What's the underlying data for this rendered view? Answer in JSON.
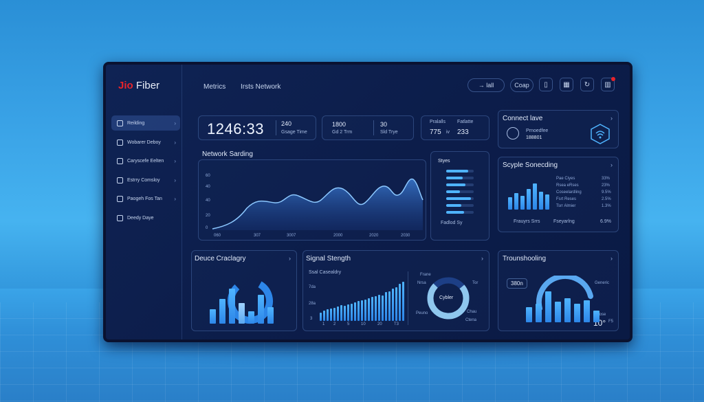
{
  "brand": {
    "jio": "Jio",
    "fiber": "Fiber"
  },
  "topnav": [
    "Metrics",
    "Irsts Network"
  ],
  "toolbar": {
    "left_btn": "→ lall",
    "right_btn": "Coap",
    "icons": [
      "panel-icon",
      "grid-icon",
      "refresh-icon",
      "notification-icon"
    ]
  },
  "sidebar": {
    "items": [
      {
        "label": "Reilding"
      },
      {
        "label": "Wobarer Deboy"
      },
      {
        "label": "Caryscefe Eelten"
      },
      {
        "label": "Estrry Comsloy"
      },
      {
        "label": "Paogeh Fos Tan"
      },
      {
        "label": "Deedy Daye"
      }
    ]
  },
  "stats": {
    "clock": "1246:33",
    "s1_value": "240",
    "s1_label": "Gsage Time",
    "s2_value": "1800",
    "s2_label": "Gd 2 Trm",
    "s3_value": "30",
    "s3_label": "Sld Trye",
    "s4_label_a": "Pralalls",
    "s4_label_b": "Fatlatte",
    "s4_value_a": "775",
    "s4_unit": "iv",
    "s4_value_b": "233"
  },
  "connect": {
    "title": "Connect lave",
    "line1": "Prnoedfee",
    "line2": "188801"
  },
  "network": {
    "title": "Network Sarding",
    "y_ticks": [
      "60",
      "40",
      "40",
      "20",
      "0"
    ],
    "x_ticks": [
      "060",
      "307",
      "3007",
      "2000",
      "2020",
      "2030"
    ]
  },
  "styes": {
    "title": "Styes",
    "footer": "Fadlod Sy",
    "levels": [
      0.8,
      0.6,
      0.7,
      0.5,
      0.9,
      0.55,
      0.65
    ]
  },
  "scyple": {
    "title": "Scyple Sonecding",
    "rows": [
      {
        "label": "Pae Ciyes",
        "value": "33%"
      },
      {
        "label": "Rsea eRses",
        "value": "23%"
      },
      {
        "label": "Coseelardling",
        "value": "9.5%"
      },
      {
        "label": "Fsrt Reses",
        "value": "2.5%"
      },
      {
        "label": "Tsrr Almier",
        "value": "1.3%"
      }
    ],
    "footer_a": "Frauyrs Srrs",
    "footer_b": "Fseyarlng",
    "footer_value": "6.9%",
    "bar_values": [
      0.45,
      0.6,
      0.5,
      0.75,
      0.95,
      0.65,
      0.55
    ]
  },
  "device": {
    "title": "Deuce Craclagry",
    "bar_values": [
      0.35,
      0.6,
      0.85,
      0.5,
      0.3,
      0.7,
      0.4
    ]
  },
  "signal": {
    "title": "Signal Stength",
    "subtitle": "Ssal Casealdry",
    "y_ticks": [
      "7da",
      "28a",
      "3"
    ],
    "x_ticks": [
      "1",
      "2",
      "5",
      "10",
      "20",
      "T3"
    ],
    "bar_values": [
      0.2,
      0.25,
      0.28,
      0.3,
      0.32,
      0.35,
      0.38,
      0.36,
      0.4,
      0.42,
      0.45,
      0.48,
      0.5,
      0.52,
      0.55,
      0.58,
      0.6,
      0.64,
      0.62,
      0.7,
      0.72,
      0.78,
      0.82,
      0.9,
      0.95
    ],
    "donut_center": "Cybler",
    "donut_labels": [
      "Frane",
      "Nrsa",
      "Peuno",
      "Tor",
      "Chau",
      "Ctena"
    ]
  },
  "trouble": {
    "title": "Trounshooling",
    "badge": "380n",
    "side_label": "Generic",
    "side_label2": "Loose",
    "big_value": "10°",
    "big_unit": "F5",
    "bar_values": [
      0.45,
      0.55,
      0.9,
      0.6,
      0.7,
      0.55,
      0.65,
      0.35
    ]
  }
}
